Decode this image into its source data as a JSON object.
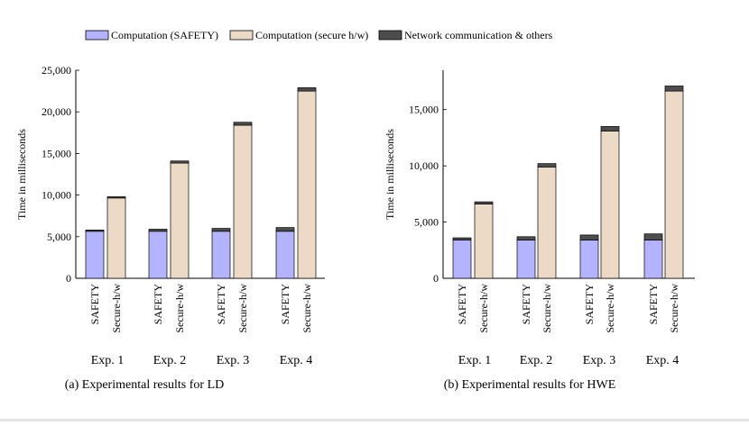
{
  "legend": {
    "items": [
      {
        "label": "Computation (SAFETY)",
        "color": "#b3b3ff"
      },
      {
        "label": "Computation (secure h/w)",
        "color": "#ecd9c6"
      },
      {
        "label": "Network communication & others",
        "color": "#4d4d4d"
      }
    ]
  },
  "chart_data": [
    {
      "type": "bar",
      "stacked": true,
      "caption": "(a) Experimental results for LD",
      "ylabel": "Time in milliseconds",
      "ylim": [
        0,
        25000
      ],
      "yticks": [
        0,
        5000,
        10000,
        15000,
        20000,
        25000
      ],
      "ytick_labels": [
        "0",
        "5,000",
        "10,000",
        "15,000",
        "20,000",
        "25,000"
      ],
      "groups": [
        "Exp. 1",
        "Exp. 2",
        "Exp. 3",
        "Exp. 4"
      ],
      "bar_labels": [
        "SAFETY",
        "Secure-h/w"
      ],
      "series": [
        {
          "name": "Computation (SAFETY)",
          "values": [
            [
              5650,
              0
            ],
            [
              5650,
              0
            ],
            [
              5650,
              0
            ],
            [
              5650,
              0
            ]
          ]
        },
        {
          "name": "Computation (secure h/w)",
          "values": [
            [
              0,
              9650
            ],
            [
              0,
              13850
            ],
            [
              0,
              18400
            ],
            [
              0,
              22500
            ]
          ]
        },
        {
          "name": "Network communication & others",
          "values": [
            [
              150,
              150
            ],
            [
              250,
              250
            ],
            [
              350,
              350
            ],
            [
              450,
              400
            ]
          ]
        }
      ]
    },
    {
      "type": "bar",
      "stacked": true,
      "caption": "(b) Experimental results for HWE",
      "ylabel": "Time in milliseconds",
      "ylim": [
        0,
        18500
      ],
      "yticks": [
        0,
        5000,
        10000,
        15000
      ],
      "ytick_labels": [
        "0",
        "5,000",
        "10,000",
        "15,000"
      ],
      "groups": [
        "Exp. 1",
        "Exp. 2",
        "Exp. 3",
        "Exp. 4"
      ],
      "bar_labels": [
        "SAFETY",
        "Secure-h/w"
      ],
      "series": [
        {
          "name": "Computation (SAFETY)",
          "values": [
            [
              3400,
              0
            ],
            [
              3400,
              0
            ],
            [
              3400,
              0
            ],
            [
              3400,
              0
            ]
          ]
        },
        {
          "name": "Computation (secure h/w)",
          "values": [
            [
              0,
              6600
            ],
            [
              0,
              9900
            ],
            [
              0,
              13100
            ],
            [
              0,
              16650
            ]
          ]
        },
        {
          "name": "Network communication & others",
          "values": [
            [
              200,
              200
            ],
            [
              300,
              300
            ],
            [
              450,
              400
            ],
            [
              550,
              450
            ]
          ]
        }
      ]
    }
  ]
}
